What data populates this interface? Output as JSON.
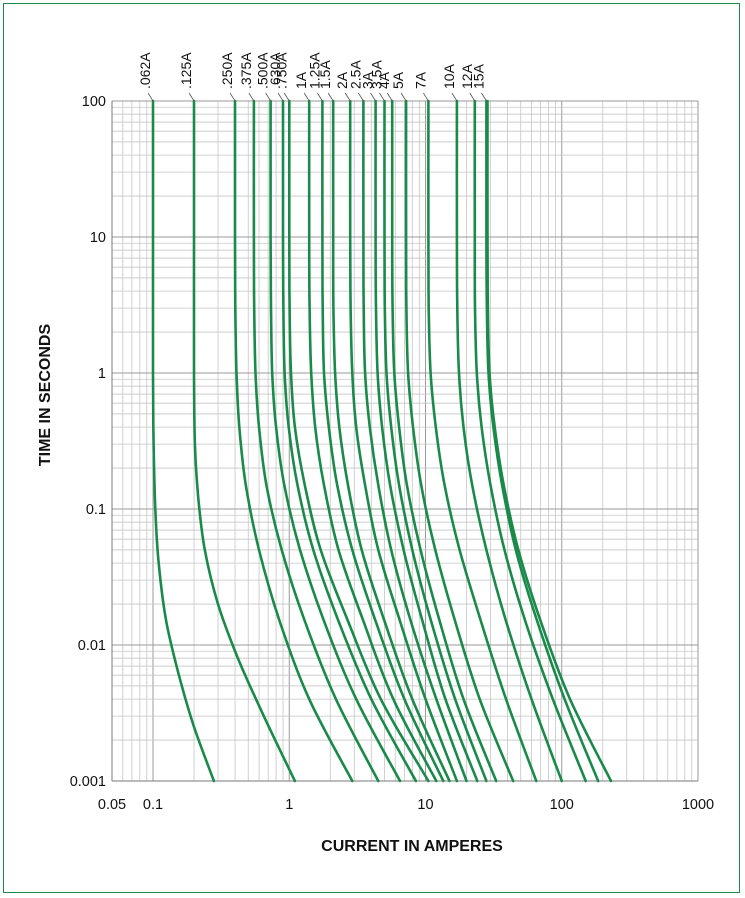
{
  "chart_data": {
    "type": "line",
    "title": "",
    "xlabel": "CURRENT IN AMPERES",
    "ylabel": "TIME IN SECONDS",
    "xscale": "log",
    "yscale": "log",
    "xlim": [
      0.05,
      1000
    ],
    "ylim": [
      0.001,
      100
    ],
    "xticks": [
      "0.05",
      "0.1",
      "1",
      "10",
      "100",
      "1000"
    ],
    "yticks": [
      "0.001",
      "0.01",
      "0.1",
      "1",
      "10",
      "100"
    ],
    "grid": true,
    "line_color": "#1a8a4a",
    "series": [
      {
        "name": ".062A",
        "x": [
          0.1,
          0.1,
          0.1,
          0.101,
          0.104,
          0.11,
          0.125,
          0.155,
          0.2,
          0.28
        ],
        "y": [
          100,
          10,
          1,
          0.3,
          0.1,
          0.04,
          0.015,
          0.006,
          0.0025,
          0.001
        ]
      },
      {
        "name": ".125A",
        "x": [
          0.2,
          0.2,
          0.2,
          0.203,
          0.215,
          0.24,
          0.3,
          0.42,
          0.65,
          1.1
        ],
        "y": [
          100,
          10,
          1,
          0.3,
          0.12,
          0.05,
          0.02,
          0.008,
          0.003,
          0.001
        ]
      },
      {
        "name": ".250A",
        "x": [
          0.4,
          0.4,
          0.402,
          0.41,
          0.43,
          0.48,
          0.6,
          0.85,
          1.4,
          2.9
        ],
        "y": [
          100,
          10,
          3,
          1,
          0.4,
          0.15,
          0.05,
          0.015,
          0.004,
          0.001
        ]
      },
      {
        "name": ".375A",
        "x": [
          0.55,
          0.55,
          0.553,
          0.565,
          0.6,
          0.68,
          0.88,
          1.3,
          2.2,
          4.5
        ],
        "y": [
          100,
          10,
          3,
          1,
          0.4,
          0.15,
          0.05,
          0.015,
          0.004,
          0.001
        ]
      },
      {
        "name": ".500A",
        "x": [
          0.73,
          0.73,
          0.735,
          0.75,
          0.8,
          0.92,
          1.2,
          1.8,
          3.1,
          6.5
        ],
        "y": [
          100,
          10,
          3,
          1,
          0.4,
          0.15,
          0.05,
          0.015,
          0.004,
          0.001
        ]
      },
      {
        "name": ".630A",
        "x": [
          0.9,
          0.9,
          0.905,
          0.925,
          0.99,
          1.15,
          1.5,
          2.3,
          4.0,
          8.5
        ],
        "y": [
          100,
          10,
          3,
          1,
          0.4,
          0.15,
          0.05,
          0.015,
          0.004,
          0.001
        ]
      },
      {
        "name": ".750A",
        "x": [
          1.0,
          1.0,
          1.005,
          1.03,
          1.1,
          1.3,
          1.7,
          2.7,
          4.7,
          10.5
        ],
        "y": [
          100,
          10,
          3,
          1,
          0.4,
          0.15,
          0.05,
          0.015,
          0.004,
          0.001
        ]
      },
      {
        "name": "1A",
        "x": [
          1.4,
          1.4,
          1.41,
          1.45,
          1.55,
          1.8,
          2.3,
          3.5,
          5.8,
          12
        ],
        "y": [
          100,
          10,
          3,
          1,
          0.4,
          0.15,
          0.05,
          0.015,
          0.004,
          0.001
        ]
      },
      {
        "name": "1.25A",
        "x": [
          1.75,
          1.75,
          1.76,
          1.8,
          1.95,
          2.25,
          2.9,
          4.3,
          7.0,
          13.5
        ],
        "y": [
          100,
          10,
          3,
          1,
          0.4,
          0.15,
          0.05,
          0.015,
          0.004,
          0.001
        ]
      },
      {
        "name": "1.5A",
        "x": [
          2.1,
          2.1,
          2.11,
          2.17,
          2.33,
          2.7,
          3.4,
          5.0,
          8.0,
          15
        ],
        "y": [
          100,
          10,
          3,
          1,
          0.4,
          0.15,
          0.05,
          0.015,
          0.004,
          0.001
        ]
      },
      {
        "name": "2A",
        "x": [
          2.8,
          2.8,
          2.82,
          2.9,
          3.1,
          3.6,
          4.5,
          6.5,
          10,
          17
        ],
        "y": [
          100,
          10,
          3,
          1,
          0.4,
          0.15,
          0.05,
          0.015,
          0.004,
          0.001
        ]
      },
      {
        "name": "2.5A",
        "x": [
          3.5,
          3.5,
          3.52,
          3.6,
          3.9,
          4.5,
          5.6,
          7.8,
          12,
          20
        ],
        "y": [
          100,
          10,
          3,
          1,
          0.4,
          0.15,
          0.05,
          0.015,
          0.004,
          0.001
        ]
      },
      {
        "name": "3A",
        "x": [
          4.3,
          4.3,
          4.33,
          4.45,
          4.8,
          5.5,
          6.9,
          9.5,
          14,
          24
        ],
        "y": [
          100,
          10,
          3,
          1,
          0.4,
          0.15,
          0.05,
          0.015,
          0.004,
          0.001
        ]
      },
      {
        "name": "3.5A",
        "x": [
          5.0,
          5.0,
          5.03,
          5.17,
          5.6,
          6.4,
          8.0,
          11,
          16.5,
          28
        ],
        "y": [
          100,
          10,
          3,
          1,
          0.4,
          0.15,
          0.05,
          0.015,
          0.004,
          0.001
        ]
      },
      {
        "name": "4A",
        "x": [
          5.7,
          5.7,
          5.73,
          5.9,
          6.4,
          7.3,
          9.2,
          12.7,
          19,
          33
        ],
        "y": [
          100,
          10,
          3,
          1,
          0.4,
          0.15,
          0.05,
          0.015,
          0.004,
          0.001
        ]
      },
      {
        "name": "5A",
        "x": [
          7.2,
          7.2,
          7.24,
          7.45,
          8.1,
          9.3,
          11.8,
          16.5,
          25,
          44
        ],
        "y": [
          100,
          10,
          3,
          1,
          0.4,
          0.15,
          0.05,
          0.015,
          0.004,
          0.001
        ]
      },
      {
        "name": "7A",
        "x": [
          10.5,
          10.5,
          10.56,
          10.9,
          11.9,
          13.8,
          17.8,
          25.5,
          39,
          65
        ],
        "y": [
          100,
          10,
          3,
          1,
          0.4,
          0.15,
          0.05,
          0.015,
          0.004,
          0.001
        ]
      },
      {
        "name": "10A",
        "x": [
          17,
          17,
          17.1,
          17.6,
          19,
          22,
          28,
          39,
          60,
          100
        ],
        "y": [
          100,
          10,
          3,
          1,
          0.4,
          0.15,
          0.05,
          0.015,
          0.004,
          0.001
        ]
      },
      {
        "name": "12A",
        "x": [
          23,
          23,
          23.1,
          23.8,
          25.8,
          30,
          38,
          54,
          86,
          150
        ],
        "y": [
          100,
          10,
          3,
          1,
          0.4,
          0.15,
          0.05,
          0.015,
          0.004,
          0.001
        ]
      },
      {
        "name": "15A",
        "x": [
          28,
          28,
          28.2,
          29,
          31.5,
          36.5,
          46,
          66,
          105,
          185
        ],
        "y": [
          100,
          10,
          3,
          1,
          0.4,
          0.15,
          0.05,
          0.015,
          0.004,
          0.001
        ]
      },
      {
        "name": "",
        "x": [
          28.5,
          28.5,
          28.7,
          29.5,
          32.2,
          37.5,
          48,
          70,
          115,
          230
        ],
        "y": [
          100,
          10,
          3,
          1,
          0.4,
          0.15,
          0.05,
          0.015,
          0.004,
          0.001
        ]
      }
    ]
  }
}
